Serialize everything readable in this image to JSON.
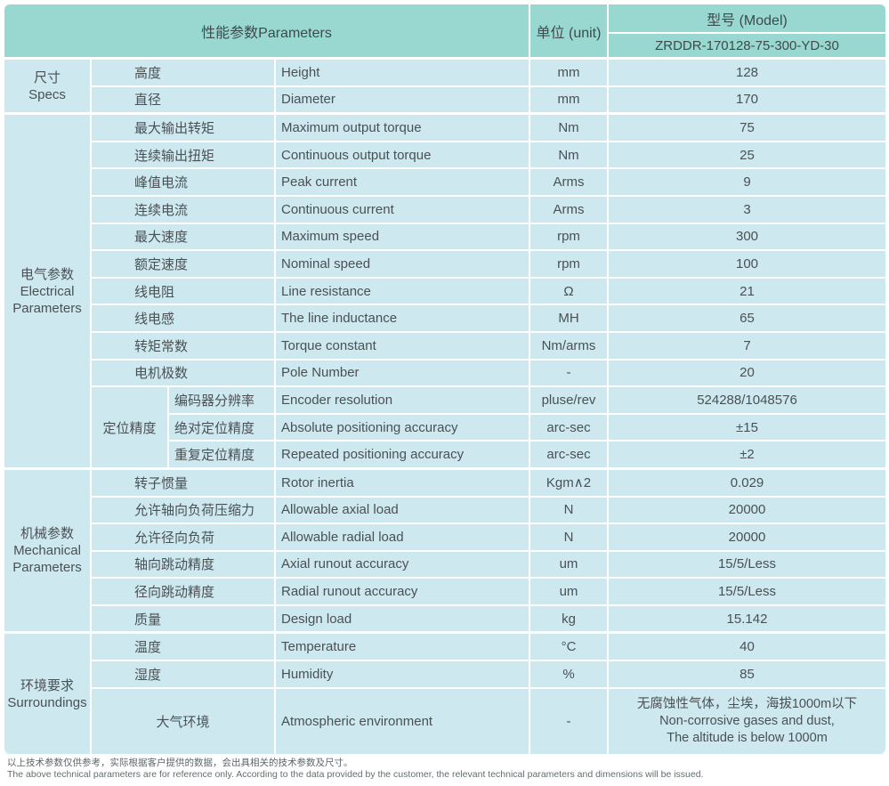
{
  "header": {
    "parameters_label": "性能参数Parameters",
    "unit_label": "单位 (unit)",
    "model_label": "型号 (Model)",
    "model_value": "ZRDDR-170128-75-300-YD-30"
  },
  "colors": {
    "header_teal": "#99d8d0",
    "body_cell_blue": "#cde8ef",
    "grid_line": "#ffffff",
    "text": "#4a5154"
  },
  "sections": [
    {
      "group_zh": "尺寸",
      "group_en": "Specs",
      "rows": [
        {
          "zh": "高度",
          "en": "Height",
          "unit": "mm",
          "value": "128"
        },
        {
          "zh": "直径",
          "en": "Diameter",
          "unit": "mm",
          "value": "170"
        }
      ]
    },
    {
      "group_zh": "电气参数",
      "group_en": "Electrical Parameters",
      "rows": [
        {
          "zh": "最大输出转矩",
          "en": "Maximum output torque",
          "unit": "Nm",
          "value": "75"
        },
        {
          "zh": "连续输出扭矩",
          "en": "Continuous output torque",
          "unit": "Nm",
          "value": "25"
        },
        {
          "zh": "峰值电流",
          "en": "Peak current",
          "unit": "Arms",
          "value": "9"
        },
        {
          "zh": "连续电流",
          "en": "Continuous current",
          "unit": "Arms",
          "value": "3"
        },
        {
          "zh": "最大速度",
          "en": "Maximum speed",
          "unit": "rpm",
          "value": "300"
        },
        {
          "zh": "额定速度",
          "en": "Nominal speed",
          "unit": "rpm",
          "value": "100"
        },
        {
          "zh": "线电阻",
          "en": "Line resistance",
          "unit": "Ω",
          "value": "21"
        },
        {
          "zh": "线电感",
          "en": "The line inductance",
          "unit": "MH",
          "value": "65"
        },
        {
          "zh": "转矩常数",
          "en": "Torque constant",
          "unit": "Nm/arms",
          "value": "7"
        },
        {
          "zh": "电机极数",
          "en": "Pole Number",
          "unit": "-",
          "value": "20"
        }
      ],
      "subgroup": {
        "label": "定位精度",
        "rows": [
          {
            "zh": "编码器分辨率",
            "en": "Encoder resolution",
            "unit": "pluse/rev",
            "value": "524288/1048576"
          },
          {
            "zh": "绝对定位精度",
            "en": "Absolute positioning accuracy",
            "unit": "arc-sec",
            "value": "±15"
          },
          {
            "zh": "重复定位精度",
            "en": "Repeated positioning accuracy",
            "unit": "arc-sec",
            "value": "±2"
          }
        ]
      }
    },
    {
      "group_zh": "机械参数",
      "group_en": "Mechanical Parameters",
      "rows": [
        {
          "zh": "转子惯量",
          "en": "Rotor inertia",
          "unit": "Kgm∧2",
          "value": "0.029"
        },
        {
          "zh": "允许轴向负荷压缩力",
          "en": "Allowable axial load",
          "unit": "N",
          "value": "20000"
        },
        {
          "zh": "允许径向负荷",
          "en": "Allowable radial load",
          "unit": "N",
          "value": "20000"
        },
        {
          "zh": "轴向跳动精度",
          "en": "Axial runout accuracy",
          "unit": "um",
          "value": "15/5/Less"
        },
        {
          "zh": "径向跳动精度",
          "en": "Radial runout accuracy",
          "unit": "um",
          "value": "15/5/Less"
        },
        {
          "zh": "质量",
          "en": "Design load",
          "unit": "kg",
          "value": "15.142"
        }
      ]
    },
    {
      "group_zh": "环境要求",
      "group_en": "Surroundings",
      "rows": [
        {
          "zh": "温度",
          "en": "Temperature",
          "unit": "°C",
          "value": "40"
        },
        {
          "zh": "湿度",
          "en": "Humidity",
          "unit": "%",
          "value": "85"
        },
        {
          "zh": "大气环境",
          "en": "Atmospheric environment",
          "unit": "-",
          "value_lines": [
            "无腐蚀性气体，尘埃，海拔1000m以下",
            "Non-corrosive gases and dust,",
            "The altitude is below 1000m"
          ]
        }
      ]
    }
  ],
  "footer": {
    "line_zh": "以上技术参数仅供参考，实际根据客户提供的数据，会出具相关的技术参数及尺寸。",
    "line_en": "The above technical parameters are for reference only. According to the data provided by the customer, the relevant technical parameters and dimensions will be issued."
  }
}
